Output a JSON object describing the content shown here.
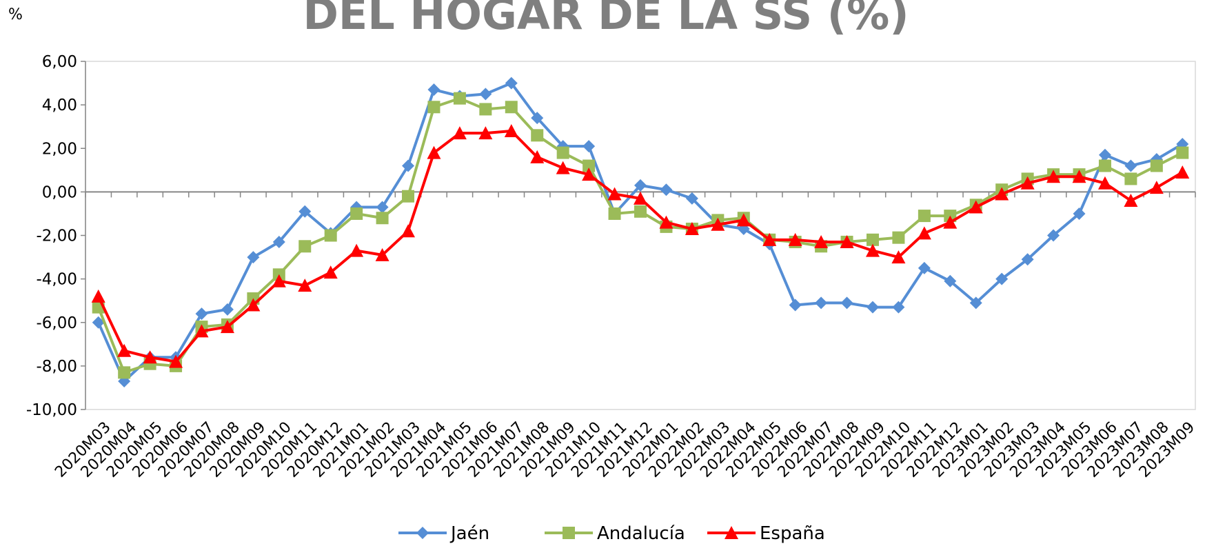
{
  "chart_data": {
    "type": "line",
    "title": "DEL HOGAR DE LA SS (%)",
    "y_label": "%",
    "categories": [
      "2020M03",
      "2020M04",
      "2020M05",
      "2020M06",
      "2020M07",
      "2020M08",
      "2020M09",
      "2020M10",
      "2020M11",
      "2020M12",
      "2021M01",
      "2021M02",
      "2021M03",
      "2021M04",
      "2021M05",
      "2021M06",
      "2021M07",
      "2021M08",
      "2021M09",
      "2021M10",
      "2021M11",
      "2021M12",
      "2022M01",
      "2022M02",
      "2022M03",
      "2022M04",
      "2022M05",
      "2022M06",
      "2022M07",
      "2022M08",
      "2022M09",
      "2022M10",
      "2022M11",
      "2022M12",
      "2023M01",
      "2023M02",
      "2023M03",
      "2023M04",
      "2023M05",
      "2023M06",
      "2023M07",
      "2023M08",
      "2023M09"
    ],
    "series": [
      {
        "name": "Jaén",
        "color": "#558ed5",
        "marker": "diamond",
        "values": [
          -6.0,
          -8.7,
          -7.6,
          -7.6,
          -5.6,
          -5.4,
          -3.0,
          -2.3,
          -0.9,
          -1.9,
          -0.7,
          -0.7,
          1.2,
          4.7,
          4.4,
          4.5,
          5.0,
          3.4,
          2.1,
          2.1,
          -1.0,
          0.3,
          0.1,
          -0.3,
          -1.5,
          -1.7,
          -2.4,
          -5.2,
          -5.1,
          -5.1,
          -5.3,
          -5.3,
          -3.5,
          -4.1,
          -5.1,
          -4.0,
          -3.1,
          -2.0,
          -1.0,
          1.7,
          1.2,
          1.5,
          2.2
        ]
      },
      {
        "name": "Andalucía",
        "color": "#9bbb59",
        "marker": "square",
        "values": [
          -5.3,
          -8.3,
          -7.9,
          -8.0,
          -6.2,
          -6.1,
          -4.9,
          -3.8,
          -2.5,
          -2.0,
          -1.0,
          -1.2,
          -0.2,
          3.9,
          4.3,
          3.8,
          3.9,
          2.6,
          1.8,
          1.2,
          -1.0,
          -0.9,
          -1.6,
          -1.7,
          -1.3,
          -1.2,
          -2.2,
          -2.3,
          -2.5,
          -2.3,
          -2.2,
          -2.1,
          -1.1,
          -1.1,
          -0.6,
          0.1,
          0.6,
          0.8,
          0.8,
          1.2,
          0.6,
          1.2,
          1.8
        ]
      },
      {
        "name": "España",
        "color": "#ff0000",
        "marker": "triangle",
        "values": [
          -4.8,
          -7.3,
          -7.6,
          -7.8,
          -6.4,
          -6.2,
          -5.2,
          -4.1,
          -4.3,
          -3.7,
          -2.7,
          -2.9,
          -1.8,
          1.8,
          2.7,
          2.7,
          2.8,
          1.6,
          1.1,
          0.8,
          -0.1,
          -0.3,
          -1.4,
          -1.7,
          -1.5,
          -1.3,
          -2.2,
          -2.2,
          -2.3,
          -2.3,
          -2.7,
          -3.0,
          -1.9,
          -1.4,
          -0.7,
          -0.1,
          0.4,
          0.7,
          0.7,
          0.4,
          -0.4,
          0.2,
          0.9
        ]
      }
    ],
    "ylim": [
      -10,
      6
    ],
    "yticks": [
      {
        "value": -10,
        "label": "-10,00"
      },
      {
        "value": -8,
        "label": "-8,00"
      },
      {
        "value": -6,
        "label": "-6,00"
      },
      {
        "value": -4,
        "label": "-4,00"
      },
      {
        "value": -2,
        "label": "-2,00"
      },
      {
        "value": 0,
        "label": "0,00"
      },
      {
        "value": 2,
        "label": "2,00"
      },
      {
        "value": 4,
        "label": "4,00"
      },
      {
        "value": 6,
        "label": "6,00"
      }
    ],
    "legend": "bottom"
  }
}
